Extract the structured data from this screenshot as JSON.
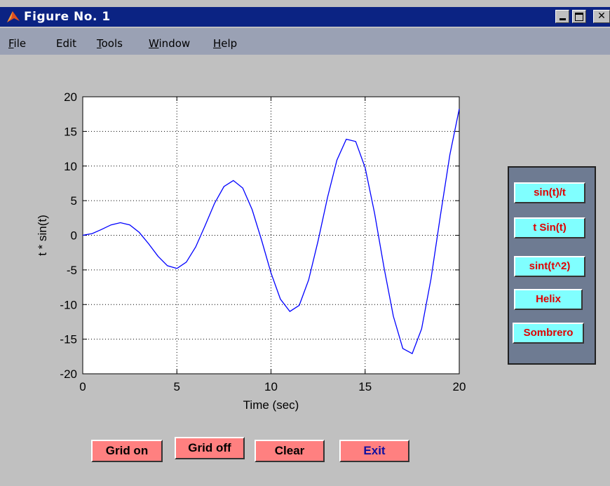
{
  "window": {
    "title": "Figure No. 1",
    "icon": "matlab-icon",
    "controls": {
      "minimize": "_",
      "maximize": "□",
      "close": "×"
    }
  },
  "menu": [
    {
      "label": "File",
      "accel": "F",
      "rest": "ile"
    },
    {
      "label": "Edit",
      "accel": "",
      "rest": "Edit"
    },
    {
      "label": "Tools",
      "accel": "T",
      "rest": "ools"
    },
    {
      "label": "Window",
      "accel": "W",
      "rest": "indow"
    },
    {
      "label": "Help",
      "accel": "H",
      "rest": "elp"
    }
  ],
  "chart_data": {
    "type": "line",
    "function": "t * sin(t)",
    "xlabel": "Time (sec)",
    "ylabel": "t * sin(t)",
    "xlim": [
      0,
      20
    ],
    "ylim": [
      -20,
      20
    ],
    "xticks": [
      0,
      5,
      10,
      15,
      20
    ],
    "yticks": [
      -20,
      -15,
      -10,
      -5,
      0,
      5,
      10,
      15,
      20
    ],
    "grid": true,
    "series": [
      {
        "color": "#0000ff",
        "x": [
          0,
          0.5,
          1,
          1.5,
          2,
          2.5,
          3,
          3.5,
          4,
          4.5,
          5,
          5.5,
          6,
          6.5,
          7,
          7.5,
          8,
          8.5,
          9,
          9.5,
          10,
          10.5,
          11,
          11.5,
          12,
          12.5,
          13,
          13.5,
          14,
          14.5,
          15,
          15.5,
          16,
          16.5,
          17,
          17.5,
          18,
          18.5,
          19,
          19.5,
          20
        ],
        "y": [
          0,
          0.24,
          0.84,
          1.5,
          1.82,
          1.5,
          0.42,
          -1.23,
          -3.03,
          -4.4,
          -4.79,
          -3.88,
          -1.68,
          1.4,
          4.6,
          7.04,
          7.91,
          6.83,
          3.71,
          -0.71,
          -5.44,
          -9.22,
          -11,
          -10.12,
          -6.44,
          -0.83,
          5.46,
          10.86,
          13.87,
          13.54,
          9.75,
          3.2,
          -4.61,
          -11.69,
          -16.34,
          -17.08,
          -13.52,
          -6.3,
          2.84,
          11.62,
          18.26
        ]
      }
    ]
  },
  "buttons": {
    "grid_on": "Grid on",
    "grid_off": "Grid off",
    "clear": "Clear",
    "exit": "Exit"
  },
  "side_buttons": [
    "sin(t)/t",
    "t Sin(t)",
    "sint(t^2)",
    "Helix",
    "Sombrero"
  ],
  "colors": {
    "titlebar": "#0b2383",
    "menubar": "#9aa1b4",
    "button_pink": "#ff8080",
    "button_cyan": "#80ffff",
    "panel": "#6e7b92",
    "exit_text": "#1010a0"
  }
}
